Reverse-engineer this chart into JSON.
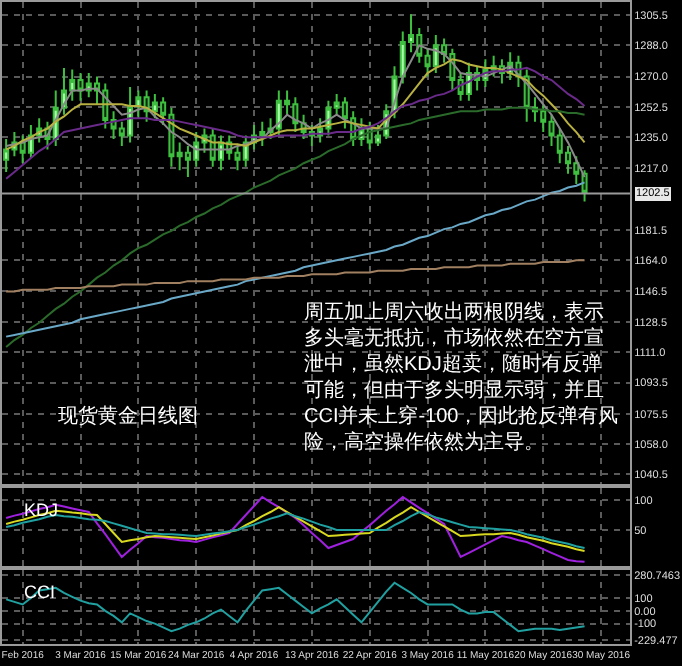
{
  "chart_data": [
    {
      "type": "candlestick",
      "categories": [
        null,
        null,
        null,
        null,
        null,
        null,
        null,
        null,
        null,
        null,
        null,
        null,
        null,
        null,
        null,
        null,
        null,
        null,
        null,
        null,
        null,
        null,
        null,
        null,
        null,
        null,
        null,
        null,
        null,
        null,
        null,
        null,
        null,
        null,
        null,
        null,
        null,
        null,
        null,
        null,
        null,
        null,
        null,
        null,
        null,
        null,
        null,
        null,
        null,
        null,
        null,
        null,
        null,
        null,
        null,
        null,
        null,
        null,
        null,
        null,
        null,
        null,
        null,
        null,
        null,
        null,
        null,
        null,
        null,
        null,
        null,
        null,
        null,
        null,
        null,
        null
      ],
      "ohlc": [
        [
          1222,
          1234,
          1215,
          1228
        ],
        [
          1228,
          1238,
          1224,
          1232
        ],
        [
          1232,
          1236,
          1220,
          1226
        ],
        [
          1226,
          1242,
          1223,
          1236
        ],
        [
          1236,
          1246,
          1232,
          1240
        ],
        [
          1240,
          1244,
          1228,
          1234
        ],
        [
          1234,
          1262,
          1230,
          1252
        ],
        [
          1252,
          1275,
          1248,
          1262
        ],
        [
          1262,
          1274,
          1256,
          1268
        ],
        [
          1268,
          1272,
          1256,
          1262
        ],
        [
          1262,
          1272,
          1258,
          1266
        ],
        [
          1266,
          1270,
          1254,
          1262
        ],
        [
          1262,
          1266,
          1240,
          1245
        ],
        [
          1245,
          1250,
          1234,
          1240
        ],
        [
          1240,
          1244,
          1230,
          1236
        ],
        [
          1236,
          1264,
          1232,
          1253
        ],
        [
          1253,
          1262,
          1246,
          1258
        ],
        [
          1258,
          1262,
          1244,
          1250
        ],
        [
          1250,
          1260,
          1246,
          1255
        ],
        [
          1255,
          1258,
          1242,
          1248
        ],
        [
          1248,
          1252,
          1218,
          1224
        ],
        [
          1224,
          1232,
          1216,
          1226
        ],
        [
          1226,
          1230,
          1212,
          1222
        ],
        [
          1222,
          1238,
          1218,
          1232
        ],
        [
          1232,
          1240,
          1226,
          1236
        ],
        [
          1236,
          1240,
          1218,
          1222
        ],
        [
          1222,
          1236,
          1216,
          1232
        ],
        [
          1232,
          1236,
          1222,
          1226
        ],
        [
          1226,
          1230,
          1216,
          1222
        ],
        [
          1222,
          1236,
          1218,
          1232
        ],
        [
          1232,
          1242,
          1228,
          1236
        ],
        [
          1236,
          1244,
          1230,
          1238
        ],
        [
          1238,
          1246,
          1234,
          1240
        ],
        [
          1240,
          1262,
          1236,
          1256
        ],
        [
          1256,
          1262,
          1248,
          1254
        ],
        [
          1254,
          1258,
          1238,
          1243
        ],
        [
          1243,
          1248,
          1234,
          1238
        ],
        [
          1238,
          1242,
          1230,
          1236
        ],
        [
          1236,
          1246,
          1232,
          1240
        ],
        [
          1240,
          1256,
          1236,
          1252
        ],
        [
          1252,
          1260,
          1248,
          1255
        ],
        [
          1255,
          1258,
          1240,
          1246
        ],
        [
          1246,
          1250,
          1230,
          1234
        ],
        [
          1234,
          1246,
          1230,
          1240
        ],
        [
          1240,
          1244,
          1228,
          1232
        ],
        [
          1232,
          1242,
          1230,
          1236
        ],
        [
          1236,
          1254,
          1234,
          1250
        ],
        [
          1250,
          1276,
          1246,
          1270
        ],
        [
          1270,
          1296,
          1266,
          1290
        ],
        [
          1290,
          1306,
          1284,
          1294
        ],
        [
          1294,
          1298,
          1278,
          1282
        ],
        [
          1282,
          1286,
          1270,
          1276
        ],
        [
          1276,
          1294,
          1272,
          1288
        ],
        [
          1288,
          1292,
          1278,
          1283
        ],
        [
          1283,
          1286,
          1262,
          1268
        ],
        [
          1268,
          1272,
          1256,
          1260
        ],
        [
          1260,
          1278,
          1256,
          1272
        ],
        [
          1272,
          1276,
          1262,
          1268
        ],
        [
          1268,
          1280,
          1264,
          1274
        ],
        [
          1274,
          1282,
          1270,
          1276
        ],
        [
          1276,
          1280,
          1266,
          1272
        ],
        [
          1272,
          1284,
          1268,
          1278
        ],
        [
          1278,
          1282,
          1264,
          1270
        ],
        [
          1270,
          1274,
          1244,
          1252
        ],
        [
          1252,
          1258,
          1244,
          1250
        ],
        [
          1250,
          1254,
          1238,
          1244
        ],
        [
          1244,
          1248,
          1230,
          1236
        ],
        [
          1236,
          1240,
          1220,
          1226
        ],
        [
          1226,
          1230,
          1214,
          1220
        ],
        [
          1220,
          1224,
          1208,
          1214
        ],
        [
          1214,
          1216,
          1198,
          1203
        ],
        null,
        null,
        null,
        null,
        null
      ],
      "series": [
        {
          "type": "line",
          "color": "#8a8a8a",
          "values": [
            1230,
            1231,
            1232,
            1234,
            1235,
            1236,
            1245,
            1254,
            1262,
            1262,
            1263,
            1263,
            1258,
            1253,
            1248,
            1249,
            1251,
            1252,
            1247,
            1243,
            1238,
            1235,
            1231,
            1228,
            1228,
            1228,
            1228,
            1228,
            1230,
            1231,
            1233,
            1234,
            1239,
            1243,
            1248,
            1245,
            1243,
            1240,
            1243,
            1245,
            1248,
            1245,
            1243,
            1240,
            1240,
            1240,
            1240,
            1255,
            1270,
            1279,
            1288,
            1286,
            1285,
            1283,
            1278,
            1272,
            1271,
            1271,
            1270,
            1272,
            1274,
            1276,
            1271,
            1266,
            1260,
            1254,
            1248,
            1240,
            1232,
            1222,
            1212,
            null,
            null,
            null,
            null,
            null
          ]
        },
        {
          "type": "line",
          "color": "#b8b040",
          "values": [
            1228,
            1230,
            1233,
            1235,
            1238,
            1240,
            1244,
            1247,
            1251,
            1254,
            1254,
            1254,
            1254,
            1254,
            1254,
            1253,
            1253,
            1252,
            1249,
            1246,
            1243,
            1240,
            1238,
            1236,
            1234,
            1232,
            1232,
            1231,
            1231,
            1230,
            1232,
            1234,
            1236,
            1238,
            1239,
            1239,
            1240,
            1240,
            1241,
            1242,
            1243,
            1244,
            1243,
            1242,
            1241,
            1240,
            1245,
            1249,
            1254,
            1260,
            1266,
            1272,
            1275,
            1277,
            1280,
            1279,
            1277,
            1276,
            1275,
            1275,
            1274,
            1272,
            1270,
            1268,
            1263,
            1259,
            1254,
            1249,
            1243,
            1238,
            1232,
            null,
            null,
            null,
            null,
            null
          ]
        },
        {
          "type": "line",
          "color": "#6a2a8a",
          "values": [
            1211,
            1215,
            1219,
            1223,
            1227,
            1230,
            1234,
            1238,
            1239,
            1240,
            1241,
            1242,
            1243,
            1244,
            1245,
            1246,
            1246,
            1246,
            1245,
            1245,
            1245,
            1244,
            1243,
            1242,
            1241,
            1240,
            1239,
            1238,
            1236,
            1235,
            1235,
            1235,
            1235,
            1236,
            1236,
            1236,
            1236,
            1237,
            1237,
            1237,
            1238,
            1238,
            1238,
            1240,
            1241,
            1243,
            1246,
            1250,
            1253,
            1254,
            1256,
            1257,
            1259,
            1260,
            1262,
            1265,
            1267,
            1270,
            1272,
            1273,
            1273,
            1274,
            1274,
            1275,
            1273,
            1270,
            1268,
            1264,
            1260,
            1257,
            1253,
            null,
            null,
            null,
            null,
            null
          ]
        },
        {
          "type": "line",
          "color": "#2a6a2a",
          "values": [
            1114,
            1118,
            1121,
            1125,
            1128,
            1132,
            1136,
            1139,
            1143,
            1146,
            1150,
            1154,
            1157,
            1161,
            1164,
            1168,
            1171,
            1173,
            1176,
            1179,
            1181,
            1184,
            1186,
            1189,
            1191,
            1194,
            1196,
            1199,
            1201,
            1203,
            1206,
            1208,
            1210,
            1213,
            1215,
            1217,
            1220,
            1222,
            1224,
            1227,
            1229,
            1231,
            1234,
            1236,
            1238,
            1239,
            1240,
            1241,
            1242,
            1243,
            1245,
            1246,
            1247,
            1248,
            1249,
            1250,
            1250,
            1250,
            1251,
            1251,
            1251,
            1252,
            1252,
            1252,
            1251,
            1251,
            1250,
            1250,
            1249,
            1249,
            1248,
            null,
            null,
            null,
            null,
            null
          ]
        },
        {
          "type": "line",
          "color": "#6aa8c8",
          "values": [
            1120,
            1121,
            1122,
            1123,
            1124,
            1125,
            1126,
            1127,
            1128,
            1130,
            1131,
            1132,
            1133,
            1134,
            1135,
            1136,
            1137,
            1138,
            1139,
            1140,
            1142,
            1143,
            1144,
            1145,
            1146,
            1147,
            1148,
            1149,
            1150,
            1152,
            1153,
            1154,
            1155,
            1156,
            1157,
            1158,
            1160,
            1161,
            1162,
            1163,
            1164,
            1165,
            1166,
            1167,
            1168,
            1169,
            1170,
            1172,
            1173,
            1175,
            1177,
            1178,
            1180,
            1182,
            1183,
            1185,
            1186,
            1188,
            1190,
            1191,
            1193,
            1194,
            1196,
            1198,
            1199,
            1201,
            1203,
            1204,
            1206,
            1207,
            1209,
            null,
            null,
            null,
            null,
            null
          ]
        },
        {
          "type": "line",
          "color": "#a08060",
          "values": [
            1146,
            1146,
            1147,
            1147,
            1147,
            1147,
            1148,
            1148,
            1148,
            1148,
            1149,
            1149,
            1149,
            1149,
            1150,
            1150,
            1150,
            1150,
            1151,
            1151,
            1151,
            1151,
            1152,
            1152,
            1152,
            1152,
            1153,
            1153,
            1153,
            1153,
            1154,
            1154,
            1154,
            1154,
            1155,
            1155,
            1155,
            1156,
            1156,
            1156,
            1156,
            1157,
            1157,
            1157,
            1157,
            1158,
            1158,
            1158,
            1158,
            1159,
            1159,
            1159,
            1159,
            1160,
            1160,
            1160,
            1160,
            1161,
            1161,
            1161,
            1161,
            1162,
            1162,
            1162,
            1162,
            1163,
            1163,
            1163,
            1163,
            1164,
            1164,
            null,
            null,
            null,
            null,
            null
          ]
        }
      ],
      "ylim": [
        1035,
        1313
      ],
      "yticks": [
        {
          "value": 1305.5,
          "label": "1305.5"
        },
        {
          "value": 1288,
          "label": "1288.0"
        },
        {
          "value": 1270,
          "label": "1270.0"
        },
        {
          "value": 1252.5,
          "label": "1252.5"
        },
        {
          "value": 1235,
          "label": "1235.0"
        },
        {
          "value": 1217,
          "label": "1217.0"
        },
        {
          "value": 1181.5,
          "label": "1181.5"
        },
        {
          "value": 1164,
          "label": "1164.0"
        },
        {
          "value": 1146.5,
          "label": "1146.5"
        },
        {
          "value": 1128.5,
          "label": "1128.5"
        },
        {
          "value": 1111,
          "label": "1111.0"
        },
        {
          "value": 1093.5,
          "label": "1093.5"
        },
        {
          "value": 1075.5,
          "label": "1075.5"
        },
        {
          "value": 1058,
          "label": "1058.0"
        },
        {
          "value": 1040.5,
          "label": "1040.5"
        }
      ],
      "ref_lines": [
        {
          "axis": "y",
          "value": 1202.5,
          "label": "1202.5",
          "color": "#9a9a9a"
        }
      ],
      "annotations": [
        "现货黄金日线图",
        "周五加上周六收出两根阴线，表示多头毫无抵抗，市场依然在空方宣泄中，虽然KDJ超卖，随时有反弹可能，但由于多头明显示弱，并且CCI并未上穿-100，因此抢反弹有风险，高空操作依然为主导。"
      ],
      "grid": true,
      "tick_labels": "y"
    },
    {
      "type": "line",
      "title": "KDJ",
      "categories": [
        null,
        null,
        null,
        null,
        null,
        null,
        null,
        null,
        null,
        null,
        null,
        null,
        null,
        null,
        null,
        null,
        null,
        null,
        null,
        null,
        null,
        null,
        null,
        null,
        null,
        null,
        null,
        null,
        null,
        null,
        null,
        null,
        null,
        null,
        null,
        null,
        null,
        null,
        null,
        null,
        null,
        null,
        null,
        null,
        null,
        null,
        null,
        null,
        null,
        null,
        null,
        null,
        null,
        null,
        null,
        null,
        null,
        null,
        null,
        null,
        null,
        null,
        null,
        null,
        null,
        null,
        null,
        null,
        null,
        null,
        null,
        null,
        null,
        null,
        null,
        null
      ],
      "series": [
        {
          "color": "#a020e0",
          "values": [
            70,
            74,
            77,
            81,
            85,
            88,
            92,
            89,
            86,
            83,
            80,
            61,
            43,
            24,
            5,
            17,
            28,
            40,
            38,
            37,
            35,
            33,
            32,
            30,
            34,
            38,
            41,
            45,
            60,
            75,
            90,
            105,
            96,
            88,
            79,
            70,
            58,
            45,
            33,
            20,
            25,
            30,
            35,
            47,
            58,
            70,
            82,
            93,
            105,
            96,
            87,
            78,
            69,
            60,
            33,
            5,
            12,
            19,
            26,
            33,
            40,
            37,
            33,
            30,
            24,
            18,
            12,
            6,
            0,
            -2,
            -3,
            null,
            null,
            null,
            null,
            null
          ]
        },
        {
          "color": "#d8d820",
          "values": [
            60,
            64,
            67,
            71,
            75,
            78,
            82,
            81,
            79,
            78,
            76,
            75,
            60,
            45,
            30,
            33,
            35,
            38,
            40,
            39,
            38,
            37,
            36,
            35,
            38,
            41,
            44,
            47,
            50,
            58,
            65,
            73,
            80,
            88,
            80,
            72,
            64,
            56,
            48,
            40,
            41,
            42,
            43,
            44,
            45,
            54,
            62,
            71,
            79,
            88,
            80,
            72,
            64,
            56,
            48,
            40,
            41,
            42,
            43,
            43,
            44,
            45,
            42,
            38,
            35,
            32,
            28,
            25,
            22,
            18,
            15,
            null,
            null,
            null,
            null,
            null
          ]
        },
        {
          "color": "#20a0a0",
          "values": [
            55,
            58,
            62,
            65,
            68,
            72,
            75,
            73,
            72,
            70,
            68,
            67,
            65,
            61,
            57,
            53,
            49,
            45,
            44,
            43,
            43,
            42,
            41,
            40,
            42,
            44,
            46,
            48,
            50,
            55,
            59,
            64,
            69,
            73,
            78,
            73,
            69,
            64,
            59,
            55,
            50,
            50,
            50,
            50,
            50,
            50,
            50,
            58,
            65,
            73,
            80,
            76,
            71,
            67,
            63,
            59,
            55,
            54,
            53,
            52,
            51,
            50,
            47,
            43,
            40,
            37,
            33,
            30,
            27,
            23,
            20,
            null,
            null,
            null,
            null,
            null
          ]
        }
      ],
      "ylim": [
        -10,
        120
      ],
      "yticks": [
        50,
        100
      ],
      "grid": true,
      "tick_labels": "y"
    },
    {
      "type": "line",
      "title": "CCI",
      "categories": [
        null,
        null,
        "Feb 2016",
        null,
        null,
        null,
        null,
        null,
        null,
        "3 Mar 2016",
        null,
        null,
        null,
        null,
        null,
        null,
        "15 Mar 2016",
        null,
        null,
        null,
        null,
        null,
        null,
        "24 Mar 2016",
        null,
        null,
        null,
        null,
        null,
        null,
        "4 Apr 2016",
        null,
        null,
        null,
        null,
        null,
        null,
        "13 Apr 2016",
        null,
        null,
        null,
        null,
        null,
        null,
        "22 Apr 2016",
        null,
        null,
        null,
        null,
        null,
        null,
        "3 May 2016",
        null,
        null,
        null,
        null,
        null,
        null,
        "11 May 2016",
        null,
        null,
        null,
        null,
        null,
        null,
        "20 May 2016",
        null,
        null,
        null,
        null,
        null,
        null,
        "30 May 2016",
        null,
        null,
        null
      ],
      "series": [
        {
          "color": "#20a0a0",
          "values": [
            90,
            70,
            50,
            100,
            160,
            170,
            180,
            140,
            110,
            80,
            60,
            50,
            0,
            -40,
            -90,
            -20,
            -50,
            -80,
            -100,
            -130,
            -160,
            -140,
            -110,
            -90,
            -60,
            -20,
            10,
            -40,
            -90,
            0,
            80,
            160,
            170,
            180,
            130,
            80,
            30,
            -20,
            20,
            50,
            90,
            30,
            -30,
            -90,
            -10,
            70,
            150,
            220,
            180,
            140,
            90,
            50,
            50,
            50,
            50,
            10,
            -20,
            -20,
            -10,
            -10,
            -60,
            -110,
            -160,
            -150,
            -140,
            -140,
            -140,
            -150,
            -140,
            -130,
            -120,
            null,
            null,
            null,
            null,
            null
          ]
        }
      ],
      "ylim": [
        -260,
        320
      ],
      "yticks": [
        {
          "value": 280.7463,
          "label": "280.7463"
        },
        100,
        {
          "value": 0,
          "label": "0.00"
        },
        -100,
        {
          "value": -229.477,
          "label": "-229.477"
        }
      ],
      "grid": true
    }
  ]
}
